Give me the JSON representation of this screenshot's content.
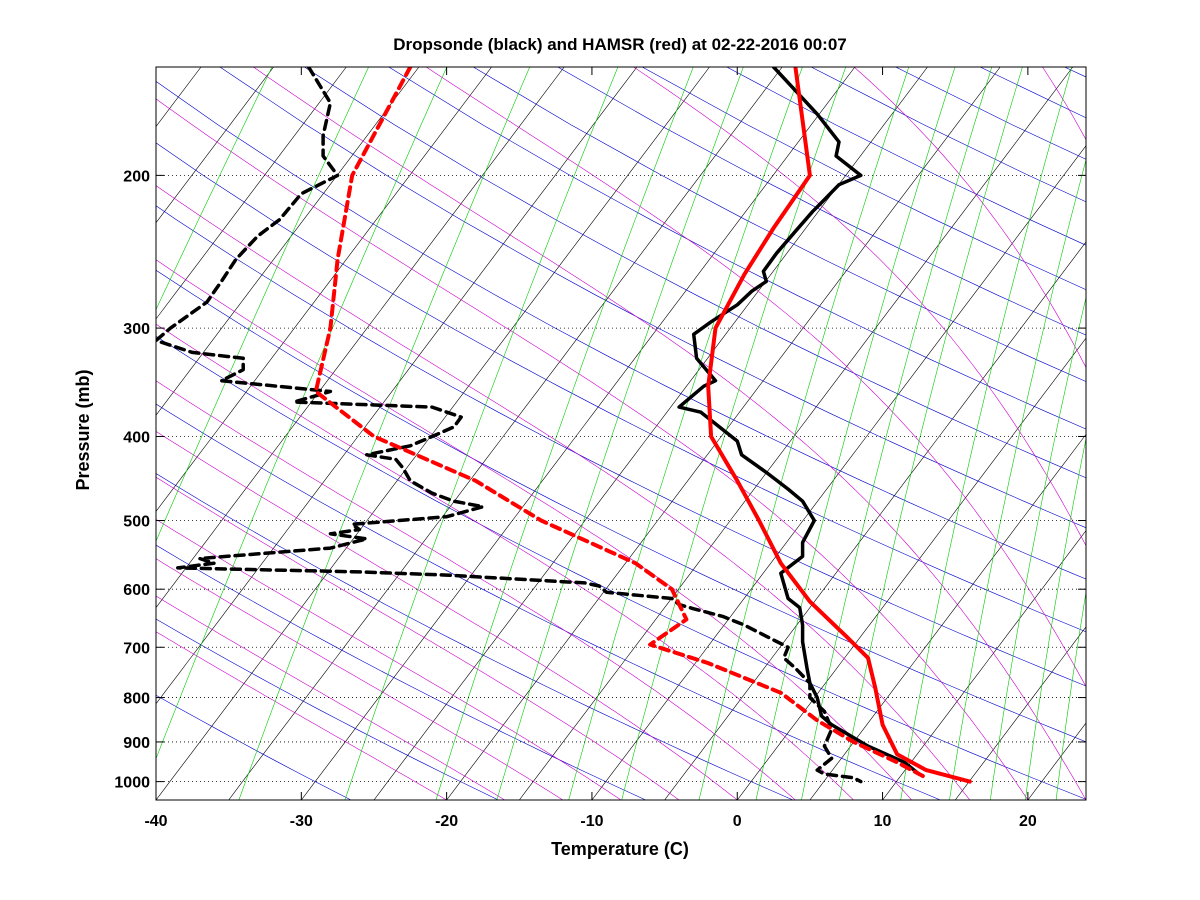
{
  "chart_data": {
    "type": "line",
    "title": "Dropsonde (black) and HAMSR (red) at 02-22-2016 00:07",
    "xlabel": "Temperature (C)",
    "ylabel": "Pressure (mb)",
    "xlim": [
      -40,
      24
    ],
    "ylim_pressure": [
      1050,
      150
    ],
    "y_scale": "log",
    "x_ticks": [
      -40,
      -30,
      -20,
      -10,
      0,
      10,
      20
    ],
    "x_tick_labels": [
      "-40",
      "-30",
      "-20",
      "-10",
      "0",
      "10",
      "20"
    ],
    "y_ticks": [
      200,
      300,
      400,
      500,
      600,
      700,
      800,
      900,
      1000
    ],
    "y_tick_labels": [
      "200",
      "300",
      "400",
      "500",
      "600",
      "700",
      "800",
      "900",
      "1000"
    ],
    "grid": true,
    "colors": {
      "dropsonde": "#000000",
      "hamsr": "#ff0000",
      "isotherm": "#000000",
      "dry_adiabat": "#0000cc",
      "moist_adiabat": "#cc00cc",
      "mixing_ratio": "#00cc00"
    },
    "series": [
      {
        "name": "Dropsonde (black)",
        "role": "temperature",
        "style": "solid",
        "points": [
          {
            "t": 2.5,
            "p": 150
          },
          {
            "t": 5.5,
            "p": 170
          },
          {
            "t": 7.0,
            "p": 183
          },
          {
            "t": 6.8,
            "p": 190
          },
          {
            "t": 8.5,
            "p": 200
          },
          {
            "t": 7.0,
            "p": 205
          },
          {
            "t": 5.8,
            "p": 215
          },
          {
            "t": 5.2,
            "p": 220
          },
          {
            "t": 4.0,
            "p": 232
          },
          {
            "t": 2.7,
            "p": 246
          },
          {
            "t": 1.8,
            "p": 258
          },
          {
            "t": 2.0,
            "p": 265
          },
          {
            "t": 1.0,
            "p": 272
          },
          {
            "t": 0.0,
            "p": 282
          },
          {
            "t": -1.8,
            "p": 295
          },
          {
            "t": -3.0,
            "p": 305
          },
          {
            "t": -2.8,
            "p": 325
          },
          {
            "t": -1.5,
            "p": 345
          },
          {
            "t": -2.3,
            "p": 350
          },
          {
            "t": -4.0,
            "p": 370
          },
          {
            "t": -2.5,
            "p": 375
          },
          {
            "t": 0.0,
            "p": 405
          },
          {
            "t": 0.3,
            "p": 420
          },
          {
            "t": 2.0,
            "p": 440
          },
          {
            "t": 3.5,
            "p": 460
          },
          {
            "t": 4.5,
            "p": 475
          },
          {
            "t": 5.3,
            "p": 500
          },
          {
            "t": 4.5,
            "p": 530
          },
          {
            "t": 4.5,
            "p": 550
          },
          {
            "t": 3.0,
            "p": 575
          },
          {
            "t": 3.5,
            "p": 615
          },
          {
            "t": 4.3,
            "p": 630
          },
          {
            "t": 4.5,
            "p": 660
          },
          {
            "t": 4.5,
            "p": 690
          },
          {
            "t": 4.8,
            "p": 740
          },
          {
            "t": 5.0,
            "p": 770
          },
          {
            "t": 5.5,
            "p": 800
          },
          {
            "t": 5.8,
            "p": 840
          },
          {
            "t": 6.5,
            "p": 860
          },
          {
            "t": 9.0,
            "p": 910
          },
          {
            "t": 11.5,
            "p": 950
          },
          {
            "t": 12.5,
            "p": 980
          }
        ]
      },
      {
        "name": "Dropsonde (black)",
        "role": "dewpoint",
        "style": "dashed",
        "points": [
          {
            "t": -29.5,
            "p": 150
          },
          {
            "t": -28.0,
            "p": 165
          },
          {
            "t": -28.5,
            "p": 180
          },
          {
            "t": -28.5,
            "p": 190
          },
          {
            "t": -27.5,
            "p": 200
          },
          {
            "t": -30.0,
            "p": 210
          },
          {
            "t": -31.5,
            "p": 225
          },
          {
            "t": -33.0,
            "p": 235
          },
          {
            "t": -34.5,
            "p": 250
          },
          {
            "t": -35.5,
            "p": 265
          },
          {
            "t": -36.5,
            "p": 280
          },
          {
            "t": -39.0,
            "p": 300
          },
          {
            "t": -40.0,
            "p": 310
          },
          {
            "t": -37.5,
            "p": 320
          },
          {
            "t": -34.0,
            "p": 325
          },
          {
            "t": -34.0,
            "p": 335
          },
          {
            "t": -35.5,
            "p": 345
          },
          {
            "t": -28.0,
            "p": 355
          },
          {
            "t": -30.5,
            "p": 365
          },
          {
            "t": -21.0,
            "p": 370
          },
          {
            "t": -19.0,
            "p": 380
          },
          {
            "t": -19.5,
            "p": 390
          },
          {
            "t": -21.0,
            "p": 400
          },
          {
            "t": -22.5,
            "p": 410
          },
          {
            "t": -25.5,
            "p": 420
          },
          {
            "t": -23.5,
            "p": 425
          },
          {
            "t": -23.0,
            "p": 435
          },
          {
            "t": -22.5,
            "p": 450
          },
          {
            "t": -21.0,
            "p": 465
          },
          {
            "t": -19.5,
            "p": 475
          },
          {
            "t": -17.5,
            "p": 482
          },
          {
            "t": -20.0,
            "p": 495
          },
          {
            "t": -26.5,
            "p": 505
          },
          {
            "t": -26.0,
            "p": 512
          },
          {
            "t": -28.0,
            "p": 518
          },
          {
            "t": -25.5,
            "p": 525
          },
          {
            "t": -28.0,
            "p": 538
          },
          {
            "t": -37.0,
            "p": 553
          },
          {
            "t": -36.0,
            "p": 560
          },
          {
            "t": -38.5,
            "p": 567
          },
          {
            "t": -26.0,
            "p": 573
          },
          {
            "t": -20.0,
            "p": 578
          },
          {
            "t": -10.5,
            "p": 590
          },
          {
            "t": -9.5,
            "p": 595
          },
          {
            "t": -9.0,
            "p": 605
          },
          {
            "t": -4.5,
            "p": 615
          },
          {
            "t": -4.0,
            "p": 625
          },
          {
            "t": -3.0,
            "p": 632
          },
          {
            "t": -1.0,
            "p": 645
          },
          {
            "t": 0.5,
            "p": 660
          },
          {
            "t": 2.0,
            "p": 680
          },
          {
            "t": 3.5,
            "p": 700
          },
          {
            "t": 3.2,
            "p": 720
          },
          {
            "t": 4.0,
            "p": 740
          },
          {
            "t": 5.0,
            "p": 770
          },
          {
            "t": 5.0,
            "p": 800
          },
          {
            "t": 6.0,
            "p": 830
          },
          {
            "t": 6.5,
            "p": 870
          },
          {
            "t": 6.0,
            "p": 910
          },
          {
            "t": 6.5,
            "p": 940
          },
          {
            "t": 5.5,
            "p": 970
          },
          {
            "t": 6.0,
            "p": 980
          },
          {
            "t": 8.0,
            "p": 990
          },
          {
            "t": 8.5,
            "p": 1000
          }
        ]
      },
      {
        "name": "HAMSR (red)",
        "role": "temperature",
        "style": "solid",
        "points": [
          {
            "t": 4.0,
            "p": 150
          },
          {
            "t": 5.0,
            "p": 200
          },
          {
            "t": 2.5,
            "p": 230
          },
          {
            "t": 0.5,
            "p": 260
          },
          {
            "t": -1.5,
            "p": 300
          },
          {
            "t": -2.0,
            "p": 350
          },
          {
            "t": -1.8,
            "p": 400
          },
          {
            "t": 0.0,
            "p": 450
          },
          {
            "t": 1.5,
            "p": 500
          },
          {
            "t": 3.0,
            "p": 560
          },
          {
            "t": 5.0,
            "p": 620
          },
          {
            "t": 7.5,
            "p": 680
          },
          {
            "t": 9.0,
            "p": 720
          },
          {
            "t": 9.5,
            "p": 780
          },
          {
            "t": 10.0,
            "p": 860
          },
          {
            "t": 11.0,
            "p": 930
          },
          {
            "t": 13.0,
            "p": 970
          },
          {
            "t": 16.0,
            "p": 1000
          }
        ]
      },
      {
        "name": "HAMSR (red)",
        "role": "dewpoint",
        "style": "dashed",
        "points": [
          {
            "t": -22.5,
            "p": 150
          },
          {
            "t": -26.5,
            "p": 200
          },
          {
            "t": -27.5,
            "p": 250
          },
          {
            "t": -28.0,
            "p": 300
          },
          {
            "t": -29.0,
            "p": 355
          },
          {
            "t": -25.0,
            "p": 400
          },
          {
            "t": -18.0,
            "p": 450
          },
          {
            "t": -13.5,
            "p": 500
          },
          {
            "t": -7.0,
            "p": 560
          },
          {
            "t": -4.5,
            "p": 600
          },
          {
            "t": -3.5,
            "p": 650
          },
          {
            "t": -6.0,
            "p": 695
          },
          {
            "t": -2.0,
            "p": 730
          },
          {
            "t": 3.0,
            "p": 790
          },
          {
            "t": 5.5,
            "p": 850
          },
          {
            "t": 8.0,
            "p": 900
          },
          {
            "t": 11.0,
            "p": 950
          },
          {
            "t": 13.0,
            "p": 990
          }
        ]
      }
    ]
  }
}
